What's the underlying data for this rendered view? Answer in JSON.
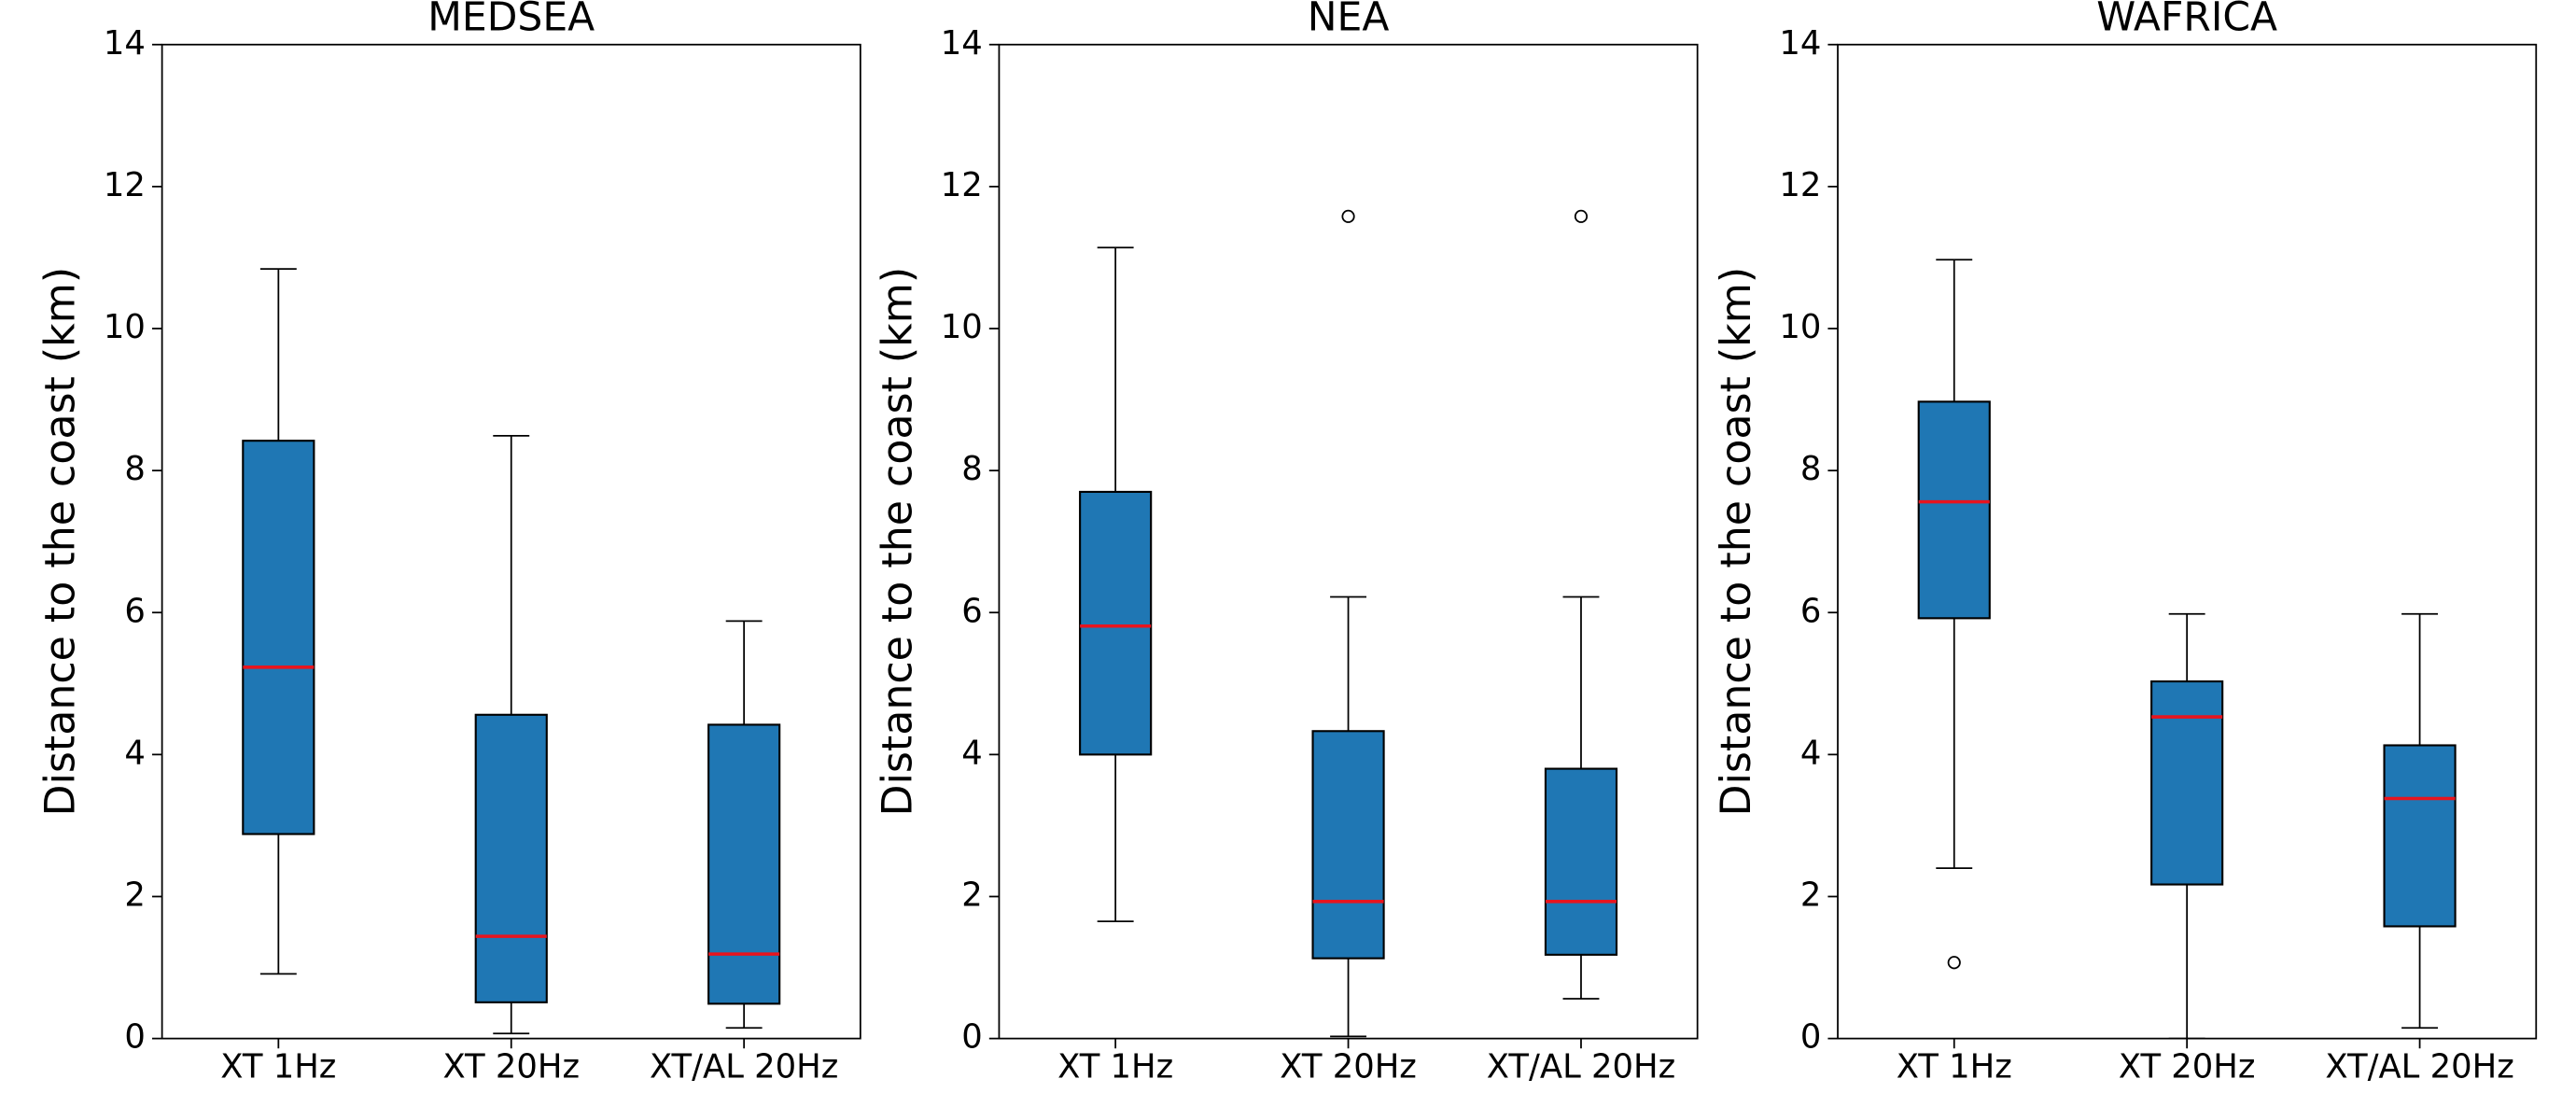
{
  "chart_data": [
    {
      "type": "box",
      "title": "MEDSEA",
      "ylabel": "Distance to the coast (km)",
      "categories": [
        "XT 1Hz",
        "XT 20Hz",
        "XT/AL 20Hz"
      ],
      "box_color": "#1f77b4",
      "median_color": "#e8141e",
      "ylim": [
        0,
        14
      ],
      "yticks": [
        0,
        2,
        4,
        6,
        8,
        10,
        12,
        14
      ],
      "boxes": [
        {
          "whislo": 0.91,
          "q1": 2.88,
          "med": 5.23,
          "q3": 8.42,
          "whishi": 10.84
        },
        {
          "whislo": 0.07,
          "q1": 0.51,
          "med": 1.44,
          "q3": 4.56,
          "whishi": 8.49
        },
        {
          "whislo": 0.15,
          "q1": 0.49,
          "med": 1.19,
          "q3": 4.42,
          "whishi": 5.88
        }
      ]
    },
    {
      "type": "box",
      "title": "NEA",
      "ylabel": "Distance to the coast (km)",
      "categories": [
        "XT 1Hz",
        "XT 20Hz",
        "XT/AL 20Hz"
      ],
      "box_color": "#1f77b4",
      "median_color": "#e8141e",
      "ylim": [
        0,
        14
      ],
      "yticks": [
        0,
        2,
        4,
        6,
        8,
        10,
        12,
        14
      ],
      "boxes": [
        {
          "whislo": 1.65,
          "q1": 4.0,
          "med": 5.81,
          "q3": 7.7,
          "whishi": 11.14
        },
        {
          "whislo": 0.03,
          "q1": 1.13,
          "med": 1.93,
          "q3": 4.33,
          "whishi": 6.22,
          "fliers": [
            11.58
          ]
        },
        {
          "whislo": 0.56,
          "q1": 1.18,
          "med": 1.93,
          "q3": 3.8,
          "whishi": 6.22,
          "fliers": [
            11.58
          ]
        }
      ]
    },
    {
      "type": "box",
      "title": "WAFRICA",
      "ylabel": "Distance to the coast (km)",
      "categories": [
        "XT 1Hz",
        "XT 20Hz",
        "XT/AL 20Hz"
      ],
      "box_color": "#1f77b4",
      "median_color": "#e8141e",
      "ylim": [
        0,
        14
      ],
      "yticks": [
        0,
        2,
        4,
        6,
        8,
        10,
        12,
        14
      ],
      "boxes": [
        {
          "whislo": 2.4,
          "q1": 5.92,
          "med": 7.56,
          "q3": 8.97,
          "whishi": 10.97,
          "fliers": [
            1.07
          ]
        },
        {
          "whislo": 0.0,
          "q1": 2.17,
          "med": 4.53,
          "q3": 5.03,
          "whishi": 5.98
        },
        {
          "whislo": 0.15,
          "q1": 1.58,
          "med": 3.38,
          "q3": 4.13,
          "whishi": 5.98
        }
      ]
    }
  ]
}
